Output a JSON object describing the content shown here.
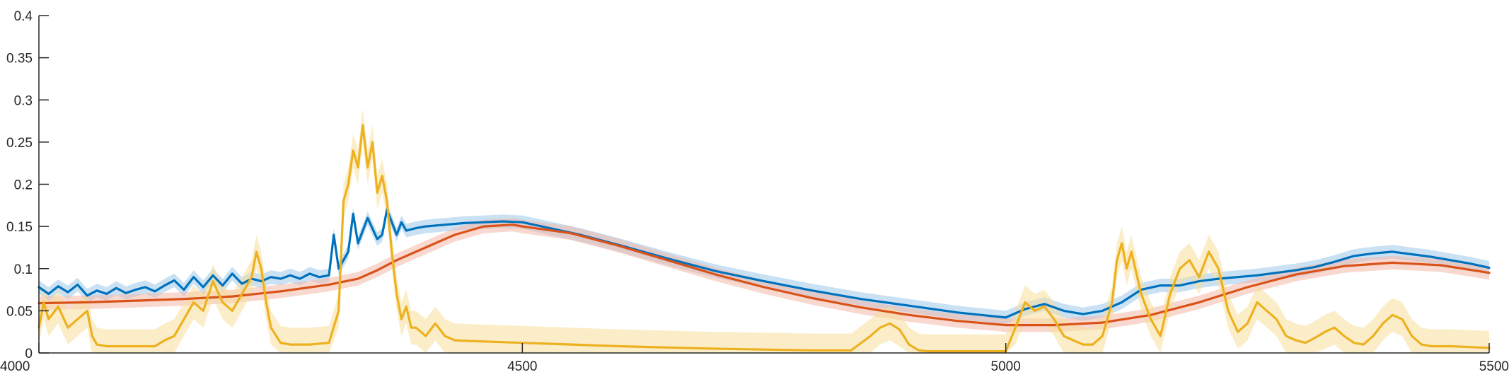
{
  "chart_data": {
    "type": "line",
    "title": "",
    "xlabel": "",
    "ylabel": "",
    "xlim": [
      4000,
      5500
    ],
    "ylim": [
      0,
      0.4
    ],
    "grid": false,
    "legend": "none",
    "x_ticks": [
      4000,
      4500,
      5000,
      5500
    ],
    "x_tick_labels": [
      "4000",
      "4500",
      "5000",
      "5500"
    ],
    "y_ticks": [
      0,
      0.05,
      0.1,
      0.15,
      0.2,
      0.25,
      0.3,
      0.35,
      0.4
    ],
    "y_tick_labels": [
      "0",
      "0.05",
      "0.1",
      "0.15",
      "0.2",
      "0.25",
      "0.3",
      "0.35",
      "0.4"
    ],
    "series": [
      {
        "color": "#0072BD",
        "band_color": "#9DC8EA",
        "band_halfwidth": 0.008,
        "x": [
          4000,
          4010,
          4020,
          4030,
          4040,
          4050,
          4060,
          4070,
          4080,
          4090,
          4100,
          4110,
          4120,
          4130,
          4140,
          4150,
          4160,
          4170,
          4180,
          4190,
          4200,
          4210,
          4220,
          4230,
          4240,
          4250,
          4260,
          4270,
          4280,
          4290,
          4300,
          4305,
          4310,
          4315,
          4320,
          4325,
          4330,
          4340,
          4350,
          4355,
          4360,
          4370,
          4375,
          4380,
          4390,
          4400,
          4420,
          4440,
          4460,
          4480,
          4500,
          4520,
          4540,
          4560,
          4600,
          4650,
          4700,
          4750,
          4800,
          4850,
          4900,
          4950,
          5000,
          5020,
          5040,
          5060,
          5080,
          5100,
          5120,
          5140,
          5160,
          5180,
          5200,
          5220,
          5240,
          5260,
          5280,
          5300,
          5320,
          5340,
          5360,
          5380,
          5400,
          5420,
          5440,
          5460,
          5480,
          5500
        ],
        "y": [
          0.078,
          0.07,
          0.079,
          0.072,
          0.081,
          0.068,
          0.074,
          0.07,
          0.077,
          0.071,
          0.075,
          0.078,
          0.073,
          0.08,
          0.086,
          0.075,
          0.09,
          0.078,
          0.092,
          0.08,
          0.094,
          0.082,
          0.088,
          0.085,
          0.09,
          0.088,
          0.092,
          0.088,
          0.094,
          0.09,
          0.092,
          0.14,
          0.1,
          0.11,
          0.12,
          0.165,
          0.13,
          0.16,
          0.135,
          0.14,
          0.17,
          0.14,
          0.155,
          0.145,
          0.148,
          0.15,
          0.152,
          0.154,
          0.155,
          0.156,
          0.155,
          0.15,
          0.145,
          0.14,
          0.128,
          0.112,
          0.097,
          0.085,
          0.074,
          0.064,
          0.056,
          0.048,
          0.042,
          0.052,
          0.058,
          0.05,
          0.046,
          0.05,
          0.06,
          0.075,
          0.08,
          0.08,
          0.085,
          0.088,
          0.09,
          0.092,
          0.095,
          0.098,
          0.102,
          0.108,
          0.115,
          0.118,
          0.12,
          0.117,
          0.114,
          0.11,
          0.106,
          0.101
        ]
      },
      {
        "color": "#D95319",
        "band_color": "#F2B8A8",
        "band_halfwidth": 0.008,
        "x": [
          4000,
          4050,
          4100,
          4150,
          4200,
          4250,
          4300,
          4330,
          4350,
          4370,
          4400,
          4430,
          4460,
          4490,
          4500,
          4550,
          4600,
          4650,
          4700,
          4750,
          4800,
          4850,
          4900,
          4950,
          5000,
          5050,
          5100,
          5150,
          5200,
          5250,
          5300,
          5350,
          5400,
          5450,
          5500
        ],
        "y": [
          0.059,
          0.06,
          0.062,
          0.064,
          0.067,
          0.073,
          0.081,
          0.088,
          0.098,
          0.11,
          0.125,
          0.14,
          0.15,
          0.152,
          0.15,
          0.142,
          0.127,
          0.11,
          0.093,
          0.078,
          0.065,
          0.054,
          0.045,
          0.038,
          0.033,
          0.033,
          0.036,
          0.045,
          0.06,
          0.078,
          0.093,
          0.103,
          0.107,
          0.104,
          0.095
        ]
      },
      {
        "color": "#EDB120",
        "band_color": "#F7DE9B",
        "band_halfwidth": 0.02,
        "x": [
          4000,
          4005,
          4010,
          4020,
          4030,
          4040,
          4050,
          4055,
          4060,
          4070,
          4080,
          4100,
          4120,
          4130,
          4140,
          4150,
          4160,
          4170,
          4180,
          4190,
          4200,
          4210,
          4220,
          4225,
          4230,
          4235,
          4240,
          4250,
          4260,
          4270,
          4280,
          4300,
          4310,
          4315,
          4320,
          4325,
          4330,
          4335,
          4340,
          4345,
          4350,
          4355,
          4360,
          4365,
          4370,
          4375,
          4380,
          4385,
          4390,
          4400,
          4410,
          4420,
          4430,
          4450,
          4500,
          4600,
          4700,
          4800,
          4840,
          4860,
          4870,
          4880,
          4890,
          4900,
          4910,
          4920,
          4950,
          5000,
          5010,
          5020,
          5030,
          5040,
          5050,
          5060,
          5070,
          5080,
          5090,
          5100,
          5110,
          5115,
          5120,
          5125,
          5130,
          5140,
          5150,
          5160,
          5170,
          5180,
          5190,
          5200,
          5210,
          5215,
          5220,
          5230,
          5240,
          5250,
          5260,
          5270,
          5280,
          5290,
          5300,
          5310,
          5320,
          5330,
          5340,
          5350,
          5360,
          5370,
          5380,
          5390,
          5400,
          5410,
          5420,
          5430,
          5440,
          5450,
          5460,
          5480,
          5500
        ],
        "y": [
          0.03,
          0.06,
          0.04,
          0.055,
          0.03,
          0.04,
          0.05,
          0.02,
          0.01,
          0.008,
          0.008,
          0.008,
          0.008,
          0.015,
          0.02,
          0.04,
          0.06,
          0.05,
          0.085,
          0.06,
          0.05,
          0.07,
          0.09,
          0.12,
          0.1,
          0.06,
          0.03,
          0.012,
          0.01,
          0.01,
          0.01,
          0.012,
          0.05,
          0.18,
          0.2,
          0.24,
          0.22,
          0.27,
          0.22,
          0.25,
          0.19,
          0.21,
          0.18,
          0.12,
          0.07,
          0.04,
          0.055,
          0.03,
          0.03,
          0.02,
          0.035,
          0.02,
          0.015,
          0.014,
          0.012,
          0.008,
          0.005,
          0.003,
          0.003,
          0.02,
          0.03,
          0.035,
          0.028,
          0.01,
          0.003,
          0.002,
          0.002,
          0.002,
          0.03,
          0.06,
          0.05,
          0.055,
          0.04,
          0.02,
          0.015,
          0.01,
          0.01,
          0.02,
          0.06,
          0.11,
          0.13,
          0.1,
          0.12,
          0.07,
          0.04,
          0.02,
          0.07,
          0.1,
          0.11,
          0.09,
          0.12,
          0.11,
          0.1,
          0.05,
          0.025,
          0.035,
          0.06,
          0.05,
          0.04,
          0.02,
          0.015,
          0.012,
          0.018,
          0.025,
          0.03,
          0.02,
          0.012,
          0.01,
          0.02,
          0.035,
          0.045,
          0.04,
          0.02,
          0.01,
          0.008,
          0.008,
          0.008,
          0.007,
          0.006
        ]
      }
    ]
  }
}
